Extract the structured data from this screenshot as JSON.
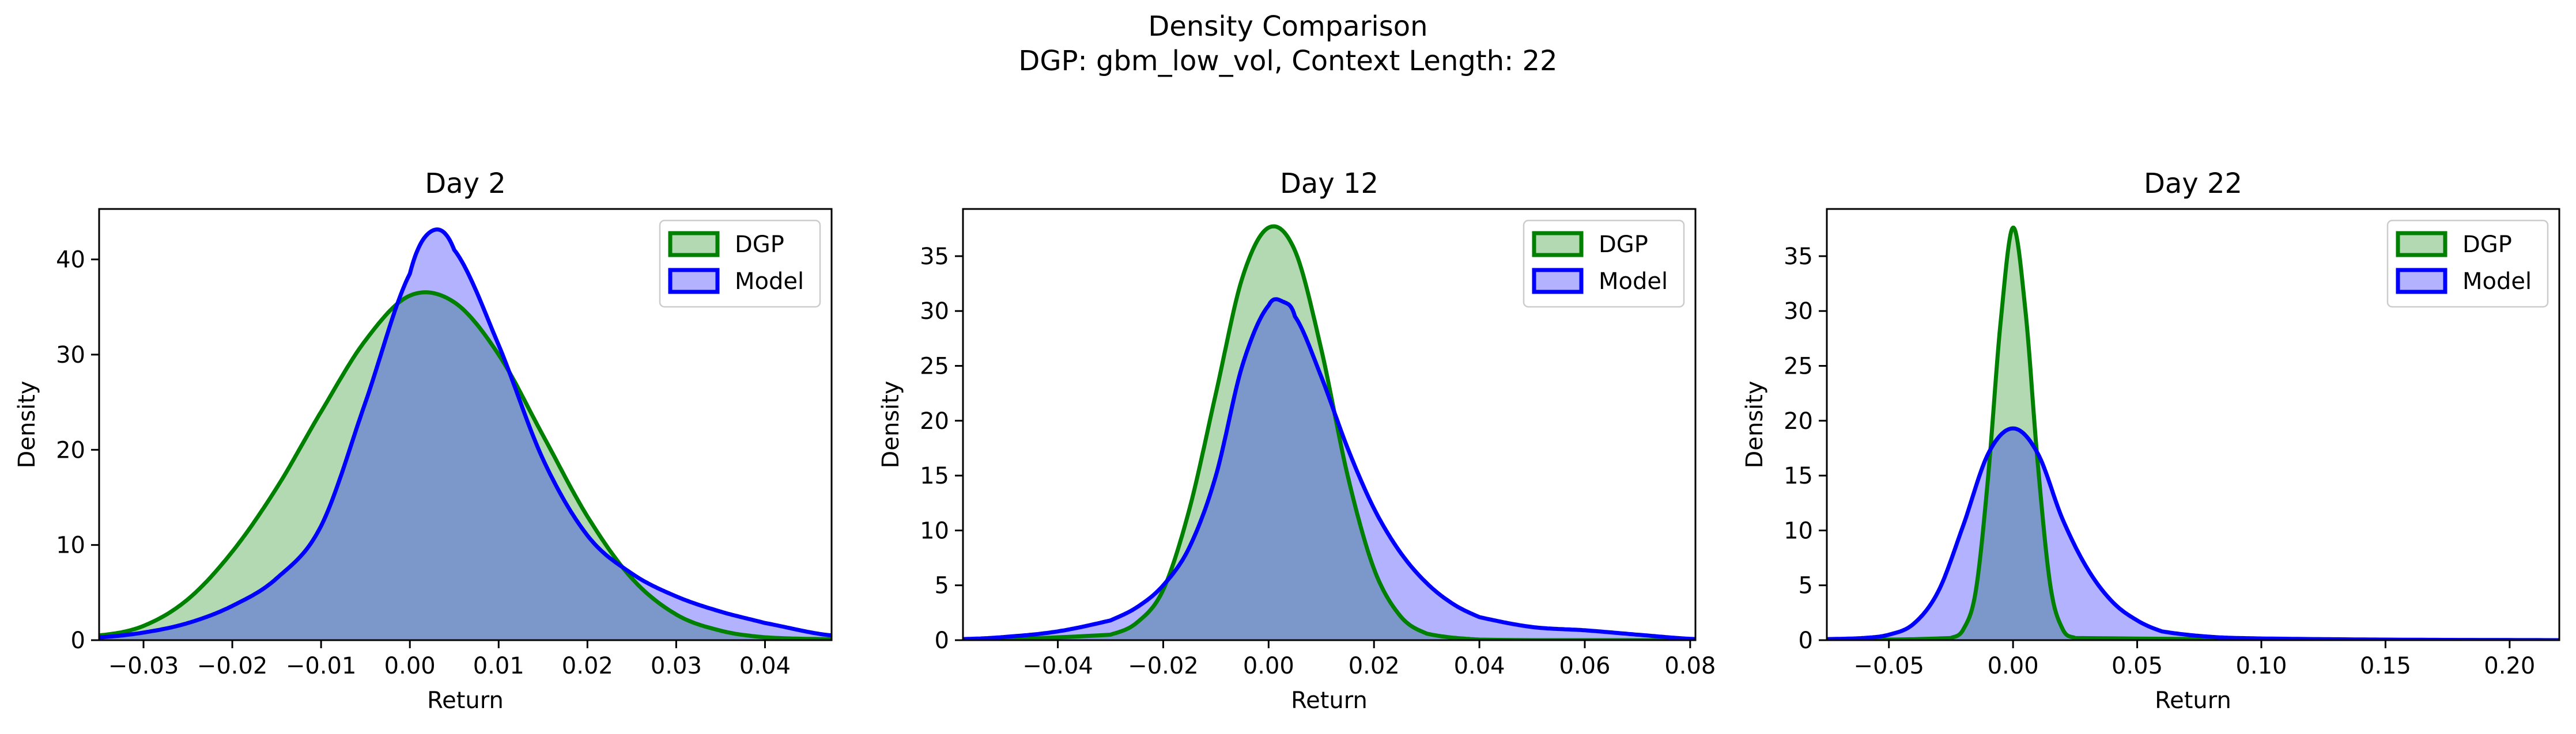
{
  "figure": {
    "title_line1": "Density Comparison",
    "title_line2": "DGP: gbm_low_vol, Context Length: 22"
  },
  "colors": {
    "dgp_line": "#008000",
    "dgp_fill": "#b2d8b2",
    "model_line": "#0000ff",
    "model_fill": "#b2b2ff",
    "overlap_fill": "#7f99c8"
  },
  "chart_data": [
    {
      "type": "area",
      "title": "Day 2",
      "xlabel": "Return",
      "ylabel": "Density",
      "xlim": [
        -0.035,
        0.0475
      ],
      "ylim": [
        0,
        45.3
      ],
      "xticks": [
        -0.03,
        -0.02,
        -0.01,
        0.0,
        0.01,
        0.02,
        0.03,
        0.04
      ],
      "xtick_labels": [
        "−0.03",
        "−0.02",
        "−0.01",
        "0.00",
        "0.01",
        "0.02",
        "0.03",
        "0.04"
      ],
      "yticks": [
        0,
        10,
        20,
        30,
        40
      ],
      "ytick_labels": [
        "0",
        "10",
        "20",
        "30",
        "40"
      ],
      "legend": {
        "position": "top-right",
        "entries": [
          "DGP",
          "Model"
        ]
      },
      "grid": false,
      "series": [
        {
          "name": "DGP",
          "x": [
            -0.035,
            -0.03,
            -0.025,
            -0.02,
            -0.015,
            -0.01,
            -0.005,
            0.0,
            0.005,
            0.01,
            0.015,
            0.02,
            0.025,
            0.03,
            0.035,
            0.04,
            0.0475
          ],
          "y": [
            0.5,
            1.5,
            4.3,
            9.3,
            16.0,
            24.0,
            31.5,
            36.2,
            35.5,
            30.0,
            21.5,
            13.0,
            6.5,
            2.7,
            1.0,
            0.3,
            0.1
          ]
        },
        {
          "name": "Model",
          "x": [
            -0.035,
            -0.03,
            -0.025,
            -0.02,
            -0.015,
            -0.01,
            -0.005,
            0.0,
            0.0025,
            0.005,
            0.01,
            0.015,
            0.02,
            0.025,
            0.03,
            0.035,
            0.04,
            0.0475
          ],
          "y": [
            0.3,
            0.8,
            1.8,
            3.6,
            6.5,
            12.0,
            25.0,
            38.5,
            43.0,
            41.0,
            31.0,
            19.0,
            11.0,
            7.0,
            4.6,
            3.0,
            1.8,
            0.5
          ]
        }
      ]
    },
    {
      "type": "area",
      "title": "Day 12",
      "xlabel": "Return",
      "ylabel": "Density",
      "xlim": [
        -0.058,
        0.081
      ],
      "ylim": [
        0,
        39.3
      ],
      "xticks": [
        -0.04,
        -0.02,
        0.0,
        0.02,
        0.04,
        0.06,
        0.08
      ],
      "xtick_labels": [
        "−0.04",
        "−0.02",
        "0.00",
        "0.02",
        "0.04",
        "0.06",
        "0.08"
      ],
      "yticks": [
        0,
        5,
        10,
        15,
        20,
        25,
        30,
        35
      ],
      "ytick_labels": [
        "0",
        "5",
        "10",
        "15",
        "20",
        "25",
        "30",
        "35"
      ],
      "legend": {
        "position": "top-right",
        "entries": [
          "DGP",
          "Model"
        ]
      },
      "grid": false,
      "series": [
        {
          "name": "DGP",
          "x": [
            -0.058,
            -0.03,
            -0.025,
            -0.02,
            -0.015,
            -0.01,
            -0.005,
            0.0,
            0.005,
            0.01,
            0.015,
            0.02,
            0.025,
            0.03,
            0.04,
            0.081
          ],
          "y": [
            0.0,
            0.5,
            1.6,
            4.6,
            12.0,
            22.5,
            33.0,
            37.6,
            35.5,
            26.5,
            15.0,
            6.5,
            2.2,
            0.6,
            0.05,
            0.0
          ]
        },
        {
          "name": "Model",
          "x": [
            -0.058,
            -0.05,
            -0.04,
            -0.03,
            -0.025,
            -0.02,
            -0.015,
            -0.01,
            -0.005,
            0.0,
            0.003,
            0.005,
            0.01,
            0.015,
            0.02,
            0.025,
            0.03,
            0.035,
            0.04,
            0.05,
            0.06,
            0.07,
            0.081
          ],
          "y": [
            0.1,
            0.3,
            0.8,
            1.8,
            3.0,
            5.0,
            8.5,
            15.0,
            25.0,
            30.5,
            30.8,
            29.5,
            24.0,
            17.5,
            12.0,
            8.0,
            5.2,
            3.3,
            2.1,
            1.2,
            0.9,
            0.5,
            0.1
          ]
        }
      ]
    },
    {
      "type": "area",
      "title": "Day 22",
      "xlabel": "Return",
      "ylabel": "Density",
      "xlim": [
        -0.075,
        0.22
      ],
      "ylim": [
        0,
        39.3
      ],
      "xticks": [
        -0.05,
        0.0,
        0.05,
        0.1,
        0.15,
        0.2
      ],
      "xtick_labels": [
        "−0.05",
        "0.00",
        "0.05",
        "0.10",
        "0.15",
        "0.20"
      ],
      "yticks": [
        0,
        5,
        10,
        15,
        20,
        25,
        30,
        35
      ],
      "ytick_labels": [
        "0",
        "5",
        "10",
        "15",
        "20",
        "25",
        "30",
        "35"
      ],
      "legend": {
        "position": "top-right",
        "entries": [
          "DGP",
          "Model"
        ]
      },
      "grid": false,
      "series": [
        {
          "name": "DGP",
          "x": [
            -0.075,
            -0.025,
            -0.02,
            -0.015,
            -0.01,
            -0.005,
            0.0,
            0.005,
            0.01,
            0.015,
            0.02,
            0.025,
            0.22
          ],
          "y": [
            0.0,
            0.2,
            1.0,
            4.5,
            15.0,
            29.0,
            37.6,
            30.0,
            16.0,
            5.0,
            1.0,
            0.2,
            0.0
          ]
        },
        {
          "name": "Model",
          "x": [
            -0.075,
            -0.06,
            -0.05,
            -0.04,
            -0.03,
            -0.02,
            -0.01,
            0.0,
            0.01,
            0.02,
            0.03,
            0.04,
            0.05,
            0.06,
            0.08,
            0.1,
            0.15,
            0.22
          ],
          "y": [
            0.1,
            0.2,
            0.5,
            1.5,
            4.5,
            10.5,
            17.0,
            19.3,
            17.0,
            11.0,
            6.5,
            3.5,
            1.8,
            0.8,
            0.3,
            0.15,
            0.05,
            0.0
          ]
        }
      ]
    }
  ]
}
